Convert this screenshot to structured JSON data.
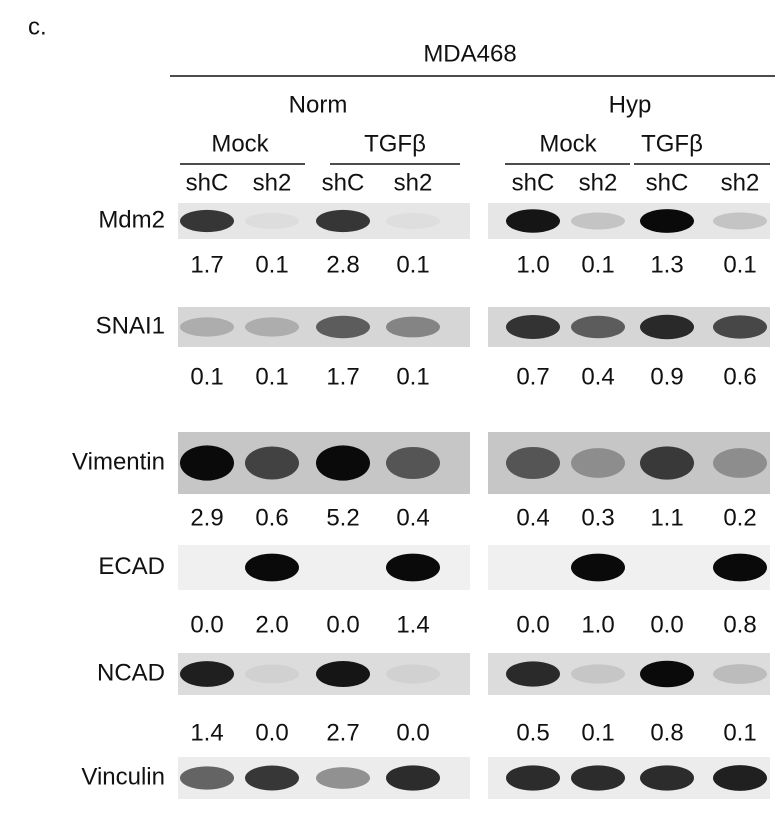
{
  "panel_label": "c.",
  "cell_line": "MDA468",
  "conditions": [
    {
      "name": "Norm",
      "treatments": [
        {
          "name": "Mock",
          "lanes": [
            "shC",
            "sh2"
          ]
        },
        {
          "name": "TGFβ",
          "lanes": [
            "shC",
            "sh2"
          ]
        }
      ]
    },
    {
      "name": "Hyp",
      "treatments": [
        {
          "name": "Mock",
          "lanes": [
            "shC",
            "sh2"
          ]
        },
        {
          "name": "TGFβ",
          "lanes": [
            "shC",
            "sh2"
          ]
        }
      ]
    }
  ],
  "rows": [
    {
      "label": "Mdm2",
      "values": [
        "1.7",
        "0.1",
        "2.8",
        "0.1",
        "1.0",
        "0.1",
        "1.3",
        "0.1"
      ]
    },
    {
      "label": "SNAI1",
      "values": [
        "0.1",
        "0.1",
        "1.7",
        "0.1",
        "0.7",
        "0.4",
        "0.9",
        "0.6"
      ]
    },
    {
      "label": "Vimentin",
      "values": [
        "2.9",
        "0.6",
        "5.2",
        "0.4",
        "0.4",
        "0.3",
        "1.1",
        "0.2"
      ]
    },
    {
      "label": "ECAD",
      "values": [
        "0.0",
        "2.0",
        "0.0",
        "1.4",
        "0.0",
        "1.0",
        "0.0",
        "0.8"
      ]
    },
    {
      "label": "NCAD",
      "values": [
        "1.4",
        "0.0",
        "2.7",
        "0.0",
        "0.5",
        "0.1",
        "0.8",
        "0.1"
      ]
    },
    {
      "label": "Vinculin"
    }
  ]
}
